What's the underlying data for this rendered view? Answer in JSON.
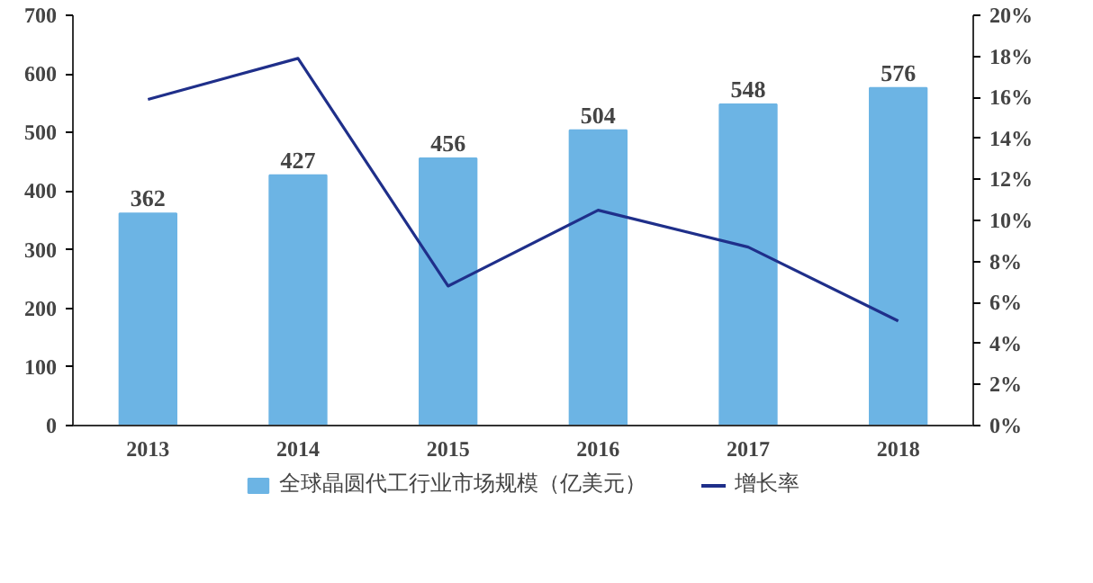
{
  "chart_data": {
    "type": "bar",
    "categories": [
      "2013",
      "2014",
      "2015",
      "2016",
      "2017",
      "2018"
    ],
    "series": [
      {
        "name": "全球晶圆代工行业市场规模（亿美元）",
        "color": "#6cb4e4",
        "values": [
          362,
          427,
          456,
          504,
          548,
          576
        ],
        "value_labels": [
          "362",
          "427",
          "456",
          "504",
          "548",
          "576"
        ]
      },
      {
        "name": "增长率",
        "type": "line",
        "axis": "y2",
        "color": "#1f2f8a",
        "values": [
          15.9,
          17.9,
          6.8,
          10.5,
          8.7,
          5.1
        ]
      }
    ],
    "ylim": [
      0,
      700
    ],
    "yticks": [
      0,
      100,
      200,
      300,
      400,
      500,
      600,
      700
    ],
    "y2lim": [
      0,
      20
    ],
    "y2ticks": [
      {
        "value": 0,
        "label": "0%"
      },
      {
        "value": 2,
        "label": "2%"
      },
      {
        "value": 4,
        "label": "4%"
      },
      {
        "value": 6,
        "label": "6%"
      },
      {
        "value": 8,
        "label": "8%"
      },
      {
        "value": 10,
        "label": "10%"
      },
      {
        "value": 12,
        "label": "12%"
      },
      {
        "value": 14,
        "label": "14%"
      },
      {
        "value": 16,
        "label": "16%"
      },
      {
        "value": 18,
        "label": "18%"
      },
      {
        "value": 20,
        "label": "20%"
      }
    ],
    "legend": "bottom",
    "line_style": "solid"
  }
}
